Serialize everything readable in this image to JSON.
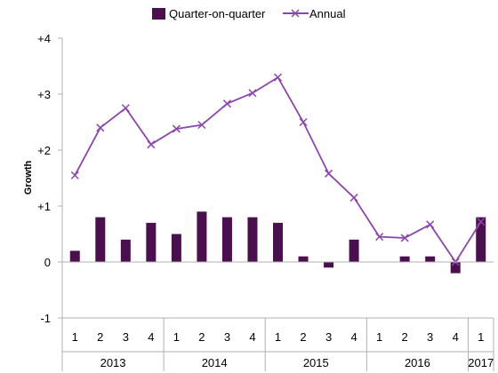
{
  "chart_data": {
    "type": "bar",
    "title": "",
    "ylabel": "Growth",
    "xlabel": "",
    "ylim": [
      -1,
      4
    ],
    "y_ticks": [
      {
        "value": 4,
        "label": "+4"
      },
      {
        "value": 3,
        "label": "+3"
      },
      {
        "value": 2,
        "label": "+2"
      },
      {
        "value": 1,
        "label": "+1"
      },
      {
        "value": 0,
        "label": "0"
      },
      {
        "value": -1,
        "label": "-1"
      }
    ],
    "categories": [
      "1",
      "2",
      "3",
      "4",
      "1",
      "2",
      "3",
      "4",
      "1",
      "2",
      "3",
      "4",
      "1",
      "2",
      "3",
      "4",
      "1"
    ],
    "year_groups": [
      {
        "label": "2013",
        "count": 4
      },
      {
        "label": "2014",
        "count": 4
      },
      {
        "label": "2015",
        "count": 4
      },
      {
        "label": "2016",
        "count": 4
      },
      {
        "label": "2017",
        "count": 1
      }
    ],
    "series": [
      {
        "name": "Quarter-on-quarter",
        "kind": "bar",
        "color": "#4b0e4f",
        "values": [
          0.2,
          0.8,
          0.4,
          0.7,
          0.5,
          0.9,
          0.8,
          0.8,
          0.7,
          0.1,
          -0.1,
          0.4,
          0.0,
          0.1,
          0.1,
          -0.2,
          0.8
        ]
      },
      {
        "name": "Annual",
        "kind": "line",
        "marker": "x",
        "color": "#8e44ad",
        "values": [
          1.55,
          2.4,
          2.75,
          2.1,
          2.38,
          2.45,
          2.83,
          3.02,
          3.3,
          2.5,
          1.58,
          1.15,
          0.45,
          0.43,
          0.67,
          0.0,
          0.72
        ]
      }
    ],
    "legend_position": "top-center",
    "grid": false
  }
}
